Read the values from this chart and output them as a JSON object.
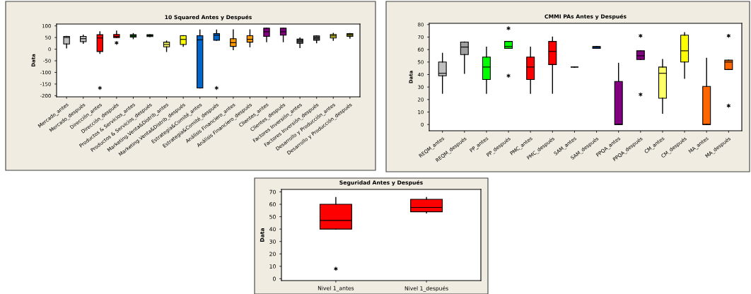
{
  "chart_data": [
    {
      "type": "box",
      "title": "10 Squared Antes y Después",
      "ylabel": "Data",
      "grid": false,
      "ylim": [
        -205,
        108
      ],
      "yticks": [
        -200,
        -150,
        -100,
        -50,
        0,
        50,
        100
      ],
      "categories": [
        "Mercado_antes",
        "Mercado_después",
        "Dirección_antes",
        "Dirección_después",
        "Productos & Servicios_antes",
        "Productos & Servicios_después",
        "Marketing.Venta&Distrib_antes",
        "Marketing.Venta&Distrib_después",
        "Estrategia&Comité_antes",
        "Estrategia&Comité_después",
        "Análisis Financiero_antes",
        "Análisis Financiero_después",
        "Clientes_antes",
        "Clientes_después",
        "Factores Inversión_antes",
        "Factores Inversión_después",
        "Desarrollo y Producción_antes",
        "Desarrollo y Producción_después"
      ],
      "colors": [
        "#c0c0c0",
        "#c0c0c0",
        "#ff0000",
        "#ff0000",
        "#00a000",
        "#00a000",
        "#ffff66",
        "#ffff00",
        "#0066cc",
        "#0066cc",
        "#ff9900",
        "#ff9900",
        "#800080",
        "#800080",
        "#505050",
        "#505050",
        "#d4d432",
        "#808000"
      ],
      "boxes": [
        {
          "low": 5,
          "q1": 22,
          "median": 50,
          "q3": 55,
          "high": 55
        },
        {
          "low": 25,
          "q1": 32,
          "median": 45,
          "q3": 55,
          "high": 60
        },
        {
          "low": -18,
          "q1": -10,
          "median": 48,
          "q3": 62,
          "high": 75,
          "outliers": [
            -167
          ]
        },
        {
          "low": 50,
          "q1": 50,
          "median": 55,
          "q3": 63,
          "high": 78,
          "outliers": [
            27
          ]
        },
        {
          "low": 45,
          "q1": 52,
          "median": 57,
          "q3": 62,
          "high": 67
        },
        {
          "low": 54,
          "q1": 54,
          "median": 58,
          "q3": 62,
          "high": 62
        },
        {
          "low": -10,
          "q1": 10,
          "median": 20,
          "q3": 30,
          "high": 35
        },
        {
          "low": 12,
          "q1": 20,
          "median": 42,
          "q3": 58,
          "high": 58
        },
        {
          "low": -167,
          "q1": -167,
          "median": 40,
          "q3": 58,
          "high": 82
        },
        {
          "low": 38,
          "q1": 38,
          "median": 60,
          "q3": 67,
          "high": 82,
          "outliers": [
            -167
          ]
        },
        {
          "low": -2,
          "q1": 12,
          "median": 28,
          "q3": 45,
          "high": 83
        },
        {
          "low": 10,
          "q1": 30,
          "median": 42,
          "q3": 58,
          "high": 83
        },
        {
          "low": 32,
          "q1": 55,
          "median": 75,
          "q3": 90,
          "high": 90
        },
        {
          "low": 32,
          "q1": 60,
          "median": 75,
          "q3": 90,
          "high": 90
        },
        {
          "low": 7,
          "q1": 25,
          "median": 35,
          "q3": 43,
          "high": 48
        },
        {
          "low": 27,
          "q1": 38,
          "median": 48,
          "q3": 57,
          "high": 57
        },
        {
          "low": 38,
          "q1": 48,
          "median": 57,
          "q3": 63,
          "high": 68
        },
        {
          "low": 47,
          "q1": 55,
          "median": 62,
          "q3": 67,
          "high": 67
        }
      ]
    },
    {
      "type": "box",
      "title": "CMMI PAs Antes y Después",
      "ylabel": "Data",
      "grid": false,
      "ylim": [
        -5,
        81
      ],
      "yticks": [
        0,
        10,
        20,
        30,
        40,
        50,
        60,
        70,
        80
      ],
      "categories": [
        "REQM_antes",
        "REQM_después",
        "PP_antes",
        "PP_después",
        "PMC_antes",
        "PMC_después",
        "SAM_antes",
        "SAM_después",
        "PPQA_antes",
        "PPQA_después",
        "CM_antes",
        "CM_después",
        "MA_antes",
        "MA_después"
      ],
      "colors": [
        "#c0c0c0",
        "#a0a0a0",
        "#00ff00",
        "#00ff00",
        "#ff0000",
        "#ff0000",
        "#000000",
        "#0066cc",
        "#800080",
        "#800080",
        "#ffff66",
        "#ffff00",
        "#ff6600",
        "#ff6600"
      ],
      "boxes": [
        {
          "low": 25,
          "q1": 39,
          "median": 41,
          "q3": 50,
          "high": 57
        },
        {
          "low": 41,
          "q1": 56,
          "median": 62,
          "q3": 66,
          "high": 66
        },
        {
          "low": 25,
          "q1": 36,
          "median": 46,
          "q3": 54,
          "high": 62
        },
        {
          "low": 61,
          "q1": 61,
          "median": 62.5,
          "q3": 66.5,
          "high": 66.5,
          "outliers": [
            77,
            39
          ]
        },
        {
          "low": 25,
          "q1": 36,
          "median": 46,
          "q3": 54,
          "high": 62
        },
        {
          "low": 25,
          "q1": 48,
          "median": 58.5,
          "q3": 66.5,
          "high": 70
        },
        {
          "low": 46,
          "q1": 46,
          "median": 46,
          "q3": 46,
          "high": 46
        },
        {
          "low": 61,
          "q1": 61,
          "median": 62,
          "q3": 62.5,
          "high": 62.5
        },
        {
          "low": 0,
          "q1": 0,
          "median": 0,
          "q3": 34.5,
          "high": 49
        },
        {
          "low": 52,
          "q1": 52,
          "median": 55,
          "q3": 59,
          "high": 59,
          "outliers": [
            71,
            24
          ]
        },
        {
          "low": 9,
          "q1": 21,
          "median": 41,
          "q3": 46,
          "high": 52
        },
        {
          "low": 37,
          "q1": 50,
          "median": 59,
          "q3": 71.5,
          "high": 73.5
        },
        {
          "low": 0,
          "q1": 0,
          "median": 0,
          "q3": 30.5,
          "high": 53
        },
        {
          "low": 44,
          "q1": 44,
          "median": 50,
          "q3": 51.5,
          "high": 51.5,
          "outliers": [
            71,
            15
          ]
        }
      ]
    },
    {
      "type": "box",
      "title": "Seguridad Antes y Después",
      "ylabel": "Data",
      "grid": false,
      "ylim": [
        -1.5,
        72
      ],
      "yticks": [
        0,
        10,
        20,
        30,
        40,
        50,
        60,
        70
      ],
      "categories": [
        "Nivel 1_antes",
        "Nivel 1_después"
      ],
      "colors": [
        "#ff0000",
        "#ff0000"
      ],
      "boxes": [
        {
          "low": 40,
          "q1": 40,
          "median": 47,
          "q3": 60,
          "high": 65.5,
          "outliers": [
            8
          ]
        },
        {
          "low": 53,
          "q1": 54,
          "median": 57.5,
          "q3": 64,
          "high": 65.5
        }
      ]
    }
  ]
}
